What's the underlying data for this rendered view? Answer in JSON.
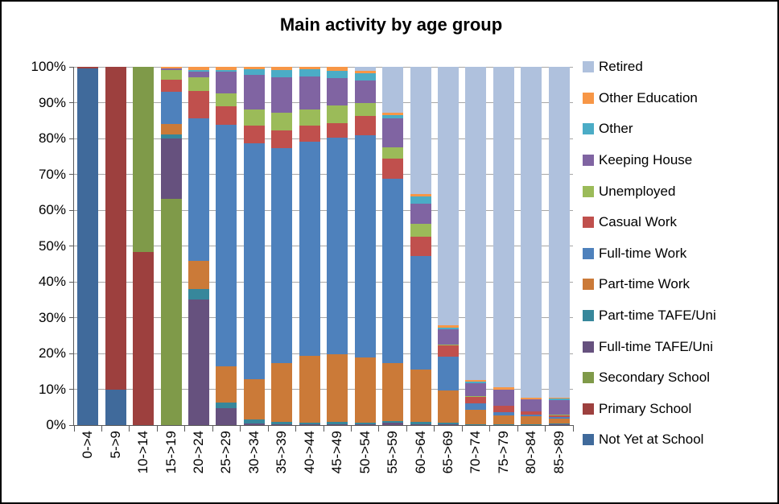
{
  "title": "Main activity by age group",
  "chart_data": {
    "type": "bar",
    "subtype": "stacked-100-percent",
    "title": "Main activity by age group",
    "xlabel": "",
    "ylabel": "",
    "ylim": [
      0,
      100
    ],
    "grid": "horizontal",
    "legend_position": "right",
    "y_tick_labels": [
      "100%",
      "90%",
      "80%",
      "70%",
      "60%",
      "50%",
      "40%",
      "30%",
      "20%",
      "10%",
      "0%"
    ],
    "categories": [
      "0->4",
      "5->9",
      "10->14",
      "15->19",
      "20->24",
      "25->29",
      "30->34",
      "35->39",
      "40->44",
      "45->49",
      "50->54",
      "55->59",
      "60->64",
      "65->69",
      "70->74",
      "75->79",
      "80->84",
      "85->89"
    ],
    "series": [
      {
        "name": "Not Yet at School",
        "color": "#406A9B",
        "values": [
          99.5,
          10,
          0,
          0,
          0,
          0,
          0,
          0,
          0,
          0,
          0,
          0,
          0,
          0,
          0,
          0,
          0,
          0
        ]
      },
      {
        "name": "Primary School",
        "color": "#9D403E",
        "values": [
          0.5,
          90,
          48.3,
          0,
          0,
          0,
          0,
          0,
          0,
          0,
          0,
          0,
          0,
          0,
          0,
          0,
          0,
          0
        ]
      },
      {
        "name": "Secondary School",
        "color": "#7F9A49",
        "values": [
          0,
          0,
          51.7,
          63.2,
          0,
          0,
          0,
          0,
          0,
          0,
          0,
          0,
          0,
          0,
          0,
          0,
          0,
          0
        ]
      },
      {
        "name": "Full-time TAFE/Uni",
        "color": "#66517E",
        "values": [
          0,
          0,
          0,
          16.9,
          35.1,
          4.7,
          0.4,
          0.3,
          0.2,
          0.2,
          0.2,
          0.6,
          0.2,
          0.2,
          0.1,
          0.1,
          0.1,
          0.2
        ]
      },
      {
        "name": "Part-time TAFE/Uni",
        "color": "#37879B",
        "values": [
          0,
          0,
          0,
          1.1,
          2.9,
          1.6,
          1.2,
          0.6,
          0.5,
          0.6,
          0.5,
          0.5,
          0.7,
          0.4,
          0.2,
          0.2,
          0.2,
          0.2
        ]
      },
      {
        "name": "Part-time Work",
        "color": "#CB7A38",
        "values": [
          0,
          0,
          0,
          2.9,
          7.9,
          10,
          11.2,
          16.5,
          18.6,
          19,
          18.2,
          16.2,
          14.7,
          9,
          3.9,
          2.3,
          2.2,
          1.5
        ]
      },
      {
        "name": "Full-time Work",
        "color": "#4E81BC",
        "values": [
          0,
          0,
          0,
          8.9,
          39.7,
          67.5,
          65.9,
          60,
          59.7,
          60.5,
          62,
          51.5,
          31.6,
          9.4,
          1.8,
          1,
          0.4,
          0.3
        ]
      },
      {
        "name": "Casual Work",
        "color": "#C0504D",
        "values": [
          0,
          0,
          0,
          3.4,
          7.7,
          5.2,
          4.9,
          4.9,
          4.5,
          4,
          5.5,
          5.6,
          5.5,
          3.2,
          1.9,
          1.7,
          0.9,
          0.5
        ]
      },
      {
        "name": "Unemployed",
        "color": "#9BBB59",
        "values": [
          0,
          0,
          0,
          2.7,
          3.9,
          3.6,
          4.6,
          4.8,
          4.5,
          5,
          3.5,
          3.1,
          3.6,
          0.3,
          0.3,
          0.2,
          0.1,
          0.2
        ]
      },
      {
        "name": "Keeping House",
        "color": "#8064A2",
        "values": [
          0,
          0,
          0,
          0.4,
          1.5,
          6,
          9.5,
          10,
          9.4,
          7.5,
          6.3,
          8.1,
          5.5,
          4.3,
          3.6,
          4.3,
          3.3,
          4
        ]
      },
      {
        "name": "Other",
        "color": "#4BACC6",
        "values": [
          0,
          0,
          0,
          0,
          0.5,
          0.5,
          1.6,
          2,
          1.9,
          2.2,
          2.1,
          0.9,
          2,
          0.4,
          0.4,
          0.2,
          0.1,
          0.5
        ]
      },
      {
        "name": "Other Education",
        "color": "#F79646",
        "values": [
          0,
          0,
          0,
          0.5,
          0.8,
          0.9,
          0.7,
          0.9,
          0.7,
          1,
          0.7,
          0.7,
          0.7,
          0.7,
          0.5,
          0.5,
          0.4,
          0.3
        ]
      },
      {
        "name": "Retired",
        "color": "#AFC1DD",
        "values": [
          0,
          0,
          0,
          0,
          0,
          0,
          0,
          0,
          0,
          0,
          1,
          12.8,
          35.5,
          72.1,
          87.3,
          89.5,
          92.3,
          92.3
        ]
      }
    ]
  },
  "legend_note": "legend lists series top-to-bottom in reverse stacking order"
}
